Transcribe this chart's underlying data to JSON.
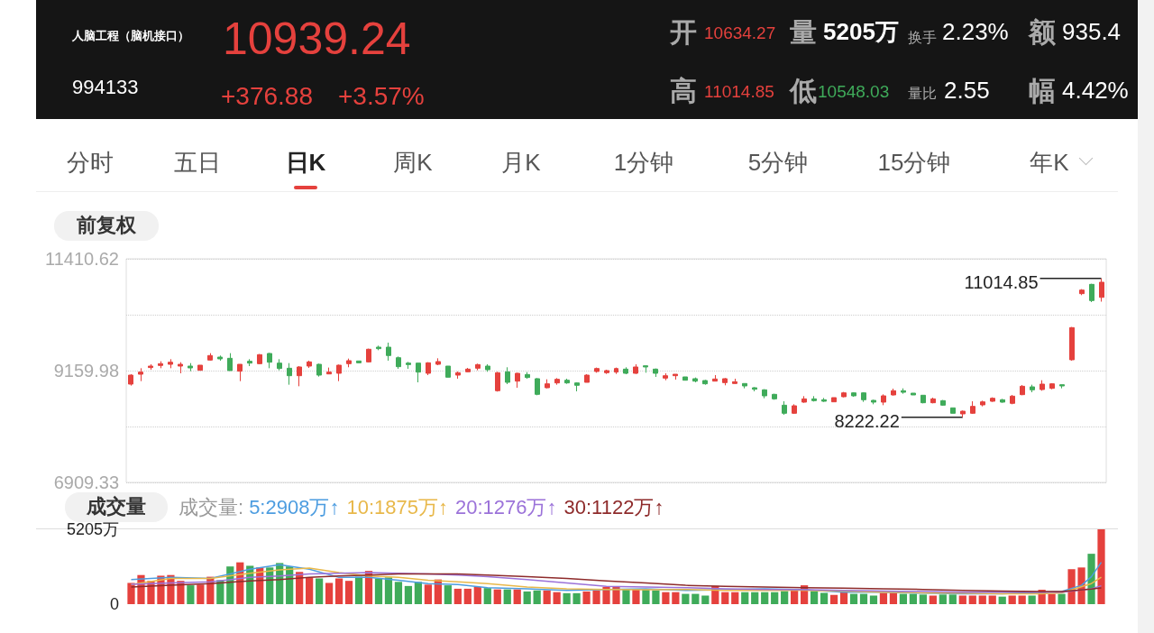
{
  "chart_data": [
    {
      "type": "candlestick",
      "title": "人脑工程（脑机接口）",
      "subtitle": "994133",
      "annotations": [
        "10939.24",
        "+376.88",
        "+3.57%",
        "开",
        "10634.27",
        "量",
        "5205万",
        "换手",
        "2.23%",
        "额",
        "935.4",
        "高",
        "11014.85",
        "低",
        "10548.03",
        "量比",
        "2.55",
        "幅",
        "4.42%",
        "分时",
        "五日",
        "日K",
        "周K",
        "月K",
        "1分钟",
        "5分钟",
        "15分钟",
        "年K",
        "前复权",
        "11014.85",
        "8222.22"
      ],
      "categories": [
        null,
        null,
        null,
        null,
        null,
        null,
        null,
        null,
        null,
        null,
        null,
        null,
        null,
        null,
        null,
        null,
        null,
        null,
        null,
        null,
        null,
        null,
        null,
        null,
        null,
        null,
        null,
        null,
        null,
        null,
        null,
        null,
        null,
        null,
        null,
        null,
        null,
        null,
        null,
        null,
        null,
        null,
        null,
        null,
        null,
        null,
        null,
        null,
        null,
        null,
        null,
        null,
        null,
        null,
        null,
        null,
        null,
        null,
        null,
        null,
        null,
        null,
        null,
        null,
        null,
        null,
        null,
        null,
        null,
        null,
        null,
        null,
        null,
        null,
        null,
        null,
        null,
        null,
        null,
        null,
        null,
        null,
        null,
        null,
        null,
        null,
        null,
        null,
        null,
        null,
        null,
        null,
        null,
        null,
        null,
        null,
        null,
        null,
        null
      ],
      "ohlc": [
        [
          8888,
          9087,
          8858,
          9069
        ],
        [
          9087,
          9208,
          8948,
          9130
        ],
        [
          9221,
          9287,
          9178,
          9251
        ],
        [
          9263,
          9348,
          9208,
          9299
        ],
        [
          9287,
          9390,
          9208,
          9329
        ],
        [
          9251,
          9329,
          9106,
          9287
        ],
        [
          9251,
          9311,
          9148,
          9214
        ],
        [
          9166,
          9269,
          9166,
          9269
        ],
        [
          9372,
          9511,
          9360,
          9463
        ],
        [
          9432,
          9463,
          9360,
          9396
        ],
        [
          9408,
          9511,
          9160,
          9160
        ],
        [
          9148,
          9287,
          8948,
          9287
        ],
        [
          9348,
          9390,
          9251,
          9311
        ],
        [
          9299,
          9493,
          9287,
          9481
        ],
        [
          9505,
          9517,
          9208,
          9329
        ],
        [
          9311,
          9390,
          9166,
          9202
        ],
        [
          9208,
          9311,
          8876,
          9057
        ],
        [
          9057,
          9251,
          8845,
          9233
        ],
        [
          9251,
          9360,
          9214,
          9335
        ],
        [
          9287,
          9299,
          9039,
          9069
        ],
        [
          9093,
          9221,
          9087,
          9130
        ],
        [
          9106,
          9281,
          8948,
          9269
        ],
        [
          9299,
          9402,
          9227,
          9360
        ],
        [
          9354,
          9354,
          9317,
          9317
        ],
        [
          9335,
          9602,
          9323,
          9590
        ],
        [
          9632,
          9662,
          9571,
          9602
        ],
        [
          9632,
          9723,
          9360,
          9463
        ],
        [
          9420,
          9444,
          9196,
          9239
        ],
        [
          9311,
          9335,
          9196,
          9281
        ],
        [
          9311,
          9311,
          8924,
          9130
        ],
        [
          9106,
          9329,
          9069,
          9317
        ],
        [
          9287,
          9408,
          9269,
          9342
        ],
        [
          9251,
          9251,
          9027,
          9027
        ],
        [
          9069,
          9142,
          8997,
          9118
        ],
        [
          9136,
          9214,
          9130,
          9190
        ],
        [
          9208,
          9299,
          9166,
          9281
        ],
        [
          9251,
          9287,
          9136,
          9178
        ],
        [
          8755,
          9136,
          8737,
          9118
        ],
        [
          9136,
          9227,
          8888,
          8924
        ],
        [
          8948,
          9118,
          8815,
          9106
        ],
        [
          9081,
          9130,
          8997,
          9021
        ],
        [
          8997,
          9009,
          8664,
          8682
        ],
        [
          8815,
          8985,
          8803,
          8894
        ],
        [
          8912,
          9009,
          8876,
          8985
        ],
        [
          8966,
          8997,
          8894,
          8912
        ],
        [
          8912,
          8924,
          8743,
          8864
        ],
        [
          8924,
          9087,
          8924,
          9069
        ],
        [
          9142,
          9221,
          9118,
          9202
        ],
        [
          9118,
          9178,
          9093,
          9160
        ],
        [
          9130,
          9221,
          9093,
          9202
        ],
        [
          9190,
          9227,
          9087,
          9106
        ],
        [
          9106,
          9287,
          9093,
          9233
        ],
        [
          9257,
          9257,
          9118,
          9233
        ],
        [
          9190,
          9202,
          9033,
          9106
        ],
        [
          9009,
          9106,
          8966,
          9057
        ],
        [
          9057,
          9087,
          8979,
          9087
        ],
        [
          9033,
          9033,
          8960,
          8966
        ],
        [
          8997,
          9021,
          8924,
          8948
        ],
        [
          8960,
          8972,
          8876,
          8894
        ],
        [
          8948,
          9069,
          8948,
          8991
        ],
        [
          8918,
          9009,
          8864,
          8997
        ],
        [
          8900,
          8997,
          8894,
          8936
        ],
        [
          8900,
          8900,
          8803,
          8851
        ],
        [
          8815,
          8827,
          8743,
          8785
        ],
        [
          8773,
          8785,
          8603,
          8652
        ],
        [
          8682,
          8694,
          8573,
          8591
        ],
        [
          8464,
          8543,
          8271,
          8301
        ],
        [
          8301,
          8482,
          8289,
          8452
        ],
        [
          8525,
          8646,
          8513,
          8591
        ],
        [
          8591,
          8646,
          8537,
          8555
        ],
        [
          8573,
          8609,
          8531,
          8543
        ],
        [
          8531,
          8616,
          8531,
          8616
        ],
        [
          8634,
          8730,
          8622,
          8712
        ],
        [
          8712,
          8724,
          8634,
          8652
        ],
        [
          8712,
          8724,
          8531,
          8573
        ],
        [
          8561,
          8573,
          8482,
          8525
        ],
        [
          8525,
          8682,
          8464,
          8652
        ],
        [
          8670,
          8797,
          8658,
          8755
        ],
        [
          8755,
          8803,
          8694,
          8724
        ],
        [
          8706,
          8706,
          8670,
          8670
        ],
        [
          8664,
          8664,
          8501,
          8513
        ],
        [
          8513,
          8616,
          8501,
          8591
        ],
        [
          8555,
          8567,
          8452,
          8464
        ],
        [
          8410,
          8410,
          8301,
          8301
        ],
        [
          8289,
          8355,
          8222.22,
          8343
        ],
        [
          8301,
          8543,
          8289,
          8440
        ],
        [
          8470,
          8555,
          8440,
          8531
        ],
        [
          8543,
          8622,
          8531,
          8603
        ],
        [
          8573,
          8591,
          8513,
          8525
        ],
        [
          8501,
          8670,
          8482,
          8646
        ],
        [
          8676,
          8870,
          8664,
          8845
        ],
        [
          8833,
          8876,
          8724,
          8773
        ],
        [
          8779,
          8966,
          8755,
          8888
        ],
        [
          8803,
          8906,
          8785,
          8894
        ],
        [
          8876,
          8876,
          8803,
          8851
        ],
        [
          9378,
          10037,
          9360,
          10025
        ],
        [
          10709,
          10800,
          10679,
          10781
        ],
        [
          10896,
          10908,
          10539,
          10570
        ],
        [
          10634.27,
          11014.85,
          10548.03,
          10939.24
        ]
      ],
      "colors": [
        "#e5413d",
        "#e5413d",
        "#e5413d",
        "#e5413d",
        "#e5413d",
        "#e5413d",
        "#3fab5a",
        "#e5413d",
        "#e5413d",
        "#3fab5a",
        "#3fab5a",
        "#e5413d",
        "#3fab5a",
        "#e5413d",
        "#3fab5a",
        "#3fab5a",
        "#3fab5a",
        "#e5413d",
        "#e5413d",
        "#3fab5a",
        "#e5413d",
        "#e5413d",
        "#e5413d",
        "#3fab5a",
        "#e5413d",
        "#3fab5a",
        "#3fab5a",
        "#3fab5a",
        "#3fab5a",
        "#3fab5a",
        "#e5413d",
        "#e5413d",
        "#3fab5a",
        "#e5413d",
        "#e5413d",
        "#e5413d",
        "#3fab5a",
        "#e5413d",
        "#3fab5a",
        "#e5413d",
        "#3fab5a",
        "#3fab5a",
        "#e5413d",
        "#e5413d",
        "#3fab5a",
        "#3fab5a",
        "#e5413d",
        "#e5413d",
        "#e5413d",
        "#e5413d",
        "#3fab5a",
        "#e5413d",
        "#3fab5a",
        "#3fab5a",
        "#e5413d",
        "#e5413d",
        "#3fab5a",
        "#3fab5a",
        "#3fab5a",
        "#e5413d",
        "#e5413d",
        "#e5413d",
        "#3fab5a",
        "#3fab5a",
        "#3fab5a",
        "#3fab5a",
        "#3fab5a",
        "#e5413d",
        "#e5413d",
        "#3fab5a",
        "#3fab5a",
        "#e5413d",
        "#e5413d",
        "#3fab5a",
        "#3fab5a",
        "#3fab5a",
        "#e5413d",
        "#e5413d",
        "#3fab5a",
        "#3fab5a",
        "#3fab5a",
        "#e5413d",
        "#3fab5a",
        "#3fab5a",
        "#e5413d",
        "#e5413d",
        "#e5413d",
        "#e5413d",
        "#3fab5a",
        "#e5413d",
        "#e5413d",
        "#3fab5a",
        "#e5413d",
        "#e5413d",
        "#3fab5a",
        "#e5413d",
        "#e5413d",
        "#3fab5a",
        "#e5413d"
      ],
      "ylim": [
        6909.33,
        11410.62
      ],
      "yticks": [
        11410.62,
        {
          "value": 10285.3,
          "label": null
        },
        9159.98,
        {
          "value": 8034.66,
          "label": null
        },
        6909.33
      ],
      "grid": "y"
    },
    {
      "type": "bar",
      "title": "成交量",
      "legend_title": "成交量:",
      "legend": "top left",
      "categories": [
        null,
        null,
        null,
        null,
        null,
        null,
        null,
        null,
        null,
        null,
        null,
        null,
        null,
        null,
        null,
        null,
        null,
        null,
        null,
        null,
        null,
        null,
        null,
        null,
        null,
        null,
        null,
        null,
        null,
        null,
        null,
        null,
        null,
        null,
        null,
        null,
        null,
        null,
        null,
        null,
        null,
        null,
        null,
        null,
        null,
        null,
        null,
        null,
        null,
        null,
        null,
        null,
        null,
        null,
        null,
        null,
        null,
        null,
        null,
        null,
        null,
        null,
        null,
        null,
        null,
        null,
        null,
        null,
        null,
        null,
        null,
        null,
        null,
        null,
        null,
        null,
        null,
        null,
        null,
        null,
        null,
        null,
        null,
        null,
        null,
        null,
        null,
        null,
        null,
        null,
        null,
        null,
        null,
        null,
        null,
        null,
        null,
        null,
        null
      ],
      "series": [
        {
          "values": [
            1477,
            2026,
            1620,
            1978,
            2026,
            1620,
            1311,
            1358,
            1906,
            1668,
            2621,
            2907,
            2669,
            2550,
            2550,
            2860,
            2621,
            2240,
            1859,
            1787,
            1477,
            1787,
            1620,
            1906,
            2312,
            1787,
            1859,
            1549,
            1263,
            1549,
            1358,
            1716,
            1311,
            1072,
            1072,
            1192,
            1120,
            1025,
            1025,
            1025,
            882,
            953,
            953,
            834,
            763,
            763,
            882,
            953,
            1192,
            1192,
            1001,
            1001,
            1001,
            953,
            834,
            834,
            715,
            715,
            596,
            1263,
            834,
            834,
            834,
            834,
            834,
            834,
            906,
            953,
            1311,
            906,
            786,
            643,
            834,
            715,
            715,
            596,
            786,
            786,
            715,
            715,
            667,
            596,
            667,
            667,
            596,
            596,
            596,
            596,
            524,
            596,
            596,
            596,
            1001,
            715,
            715,
            2431,
            2550,
            3503,
            5205
          ],
          "colors": [
            "#e5413d",
            "#e5413d",
            "#e5413d",
            "#e5413d",
            "#e5413d",
            "#e5413d",
            "#3fab5a",
            "#e5413d",
            "#e5413d",
            "#3fab5a",
            "#3fab5a",
            "#e5413d",
            "#3fab5a",
            "#e5413d",
            "#3fab5a",
            "#3fab5a",
            "#3fab5a",
            "#e5413d",
            "#e5413d",
            "#3fab5a",
            "#e5413d",
            "#e5413d",
            "#e5413d",
            "#3fab5a",
            "#e5413d",
            "#3fab5a",
            "#3fab5a",
            "#3fab5a",
            "#3fab5a",
            "#3fab5a",
            "#e5413d",
            "#e5413d",
            "#3fab5a",
            "#e5413d",
            "#e5413d",
            "#e5413d",
            "#3fab5a",
            "#e5413d",
            "#3fab5a",
            "#e5413d",
            "#3fab5a",
            "#3fab5a",
            "#e5413d",
            "#e5413d",
            "#3fab5a",
            "#3fab5a",
            "#e5413d",
            "#e5413d",
            "#e5413d",
            "#e5413d",
            "#3fab5a",
            "#e5413d",
            "#3fab5a",
            "#3fab5a",
            "#e5413d",
            "#e5413d",
            "#3fab5a",
            "#3fab5a",
            "#3fab5a",
            "#e5413d",
            "#e5413d",
            "#e5413d",
            "#3fab5a",
            "#3fab5a",
            "#3fab5a",
            "#3fab5a",
            "#3fab5a",
            "#e5413d",
            "#e5413d",
            "#3fab5a",
            "#3fab5a",
            "#e5413d",
            "#e5413d",
            "#3fab5a",
            "#3fab5a",
            "#3fab5a",
            "#e5413d",
            "#e5413d",
            "#3fab5a",
            "#3fab5a",
            "#3fab5a",
            "#e5413d",
            "#3fab5a",
            "#3fab5a",
            "#e5413d",
            "#e5413d",
            "#e5413d",
            "#e5413d",
            "#3fab5a",
            "#e5413d",
            "#e5413d",
            "#3fab5a",
            "#e5413d",
            "#e5413d",
            "#3fab5a",
            "#e5413d",
            "#e5413d",
            "#3fab5a",
            "#e5413d"
          ]
        },
        {
          "name": "5:2908万↑",
          "type": "line",
          "color": "#4d9de0",
          "values": [
            1716,
            null,
            null,
            null,
            1859,
            null,
            null,
            null,
            1787,
            null,
            null,
            null,
            2431,
            null,
            null,
            2740,
            null,
            null,
            2431,
            null,
            null,
            1859,
            null,
            null,
            1859,
            null,
            null,
            1668,
            null,
            null,
            1430,
            null,
            null,
            1358,
            null,
            null,
            1144,
            null,
            null,
            null,
            1072,
            null,
            null,
            null,
            953,
            null,
            null,
            null,
            1025,
            null,
            null,
            null,
            1072,
            null,
            null,
            null,
            953,
            null,
            null,
            null,
            1001,
            null,
            null,
            null,
            1072,
            null,
            null,
            null,
            1001,
            null,
            null,
            null,
            834,
            null,
            null,
            null,
            834,
            null,
            null,
            null,
            763,
            null,
            null,
            null,
            715,
            null,
            null,
            null,
            715,
            null,
            null,
            null,
            834,
            null,
            882,
            null,
            1311,
            1906,
            2908
          ]
        },
        {
          "name": "10:1875万↑",
          "type": "line",
          "color": "#e8b84a",
          "values": [
            1358,
            null,
            null,
            null,
            1787,
            null,
            null,
            null,
            1787,
            null,
            null,
            null,
            2145,
            null,
            null,
            2383,
            null,
            null,
            2502,
            null,
            null,
            2192,
            null,
            null,
            1954,
            null,
            null,
            1859,
            null,
            null,
            1668,
            null,
            null,
            1549,
            null,
            null,
            1430,
            null,
            null,
            null,
            1192,
            null,
            null,
            null,
            1072,
            null,
            null,
            null,
            1025,
            null,
            null,
            null,
            1001,
            null,
            null,
            null,
            1025,
            null,
            null,
            null,
            953,
            null,
            null,
            null,
            953,
            null,
            null,
            null,
            953,
            null,
            null,
            null,
            906,
            null,
            null,
            null,
            834,
            null,
            null,
            null,
            786,
            null,
            null,
            null,
            763,
            null,
            null,
            null,
            715,
            null,
            null,
            null,
            715,
            null,
            786,
            null,
            null,
            1430,
            1875
          ]
        },
        {
          "name": "20:1276万↑",
          "type": "line",
          "color": "#9b72d9",
          "values": [
            1382,
            null,
            null,
            null,
            1477,
            null,
            null,
            null,
            1549,
            null,
            null,
            null,
            1859,
            null,
            null,
            1954,
            null,
            null,
            2097,
            null,
            null,
            2145,
            null,
            null,
            2192,
            null,
            null,
            2145,
            null,
            null,
            2097,
            null,
            null,
            2026,
            null,
            null,
            1906,
            null,
            null,
            null,
            1716,
            null,
            null,
            null,
            1477,
            null,
            null,
            null,
            1239,
            null,
            null,
            null,
            1192,
            null,
            null,
            null,
            1144,
            null,
            null,
            null,
            1072,
            null,
            null,
            null,
            1025,
            null,
            null,
            null,
            1001,
            null,
            null,
            null,
            953,
            null,
            null,
            null,
            906,
            null,
            null,
            null,
            882,
            null,
            null,
            null,
            834,
            null,
            null,
            null,
            834,
            null,
            null,
            null,
            834,
            null,
            834,
            null,
            null,
            1072,
            1276
          ]
        },
        {
          "name": "30:1122万↑",
          "type": "line",
          "color": "#8e2b2b",
          "values": [
            1192,
            null,
            null,
            null,
            1311,
            null,
            null,
            null,
            1430,
            null,
            null,
            null,
            1620,
            null,
            null,
            1716,
            null,
            null,
            1859,
            null,
            null,
            1954,
            null,
            null,
            2026,
            null,
            null,
            2097,
            null,
            null,
            2097,
            null,
            null,
            2097,
            null,
            null,
            2026,
            null,
            null,
            null,
            1906,
            null,
            null,
            null,
            1787,
            null,
            null,
            null,
            1620,
            null,
            null,
            null,
            1477,
            null,
            null,
            null,
            1311,
            null,
            null,
            null,
            1239,
            null,
            null,
            null,
            1192,
            null,
            null,
            null,
            1144,
            null,
            null,
            null,
            1120,
            null,
            null,
            null,
            1072,
            null,
            null,
            null,
            1025,
            null,
            null,
            null,
            953,
            null,
            null,
            null,
            906,
            null,
            null,
            null,
            882,
            null,
            882,
            null,
            null,
            1049,
            1122
          ]
        }
      ],
      "ylim": [
        0,
        5205
      ],
      "yticks": [
        {
          "value": 5205,
          "label": "5205万"
        },
        0
      ]
    }
  ]
}
